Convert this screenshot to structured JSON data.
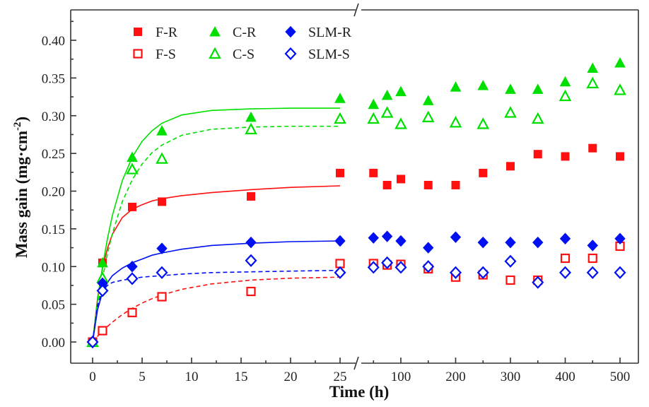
{
  "chart_data": {
    "type": "scatter",
    "title": "",
    "xlabel": "Time (h)",
    "ylabel": "Mass gain (mg·cm",
    "ylabel_sup": "-2",
    "ylabel_close": ")",
    "ylim": [
      0,
      0.44
    ],
    "x_axis": {
      "broken": true,
      "segments": [
        {
          "range": [
            0,
            25
          ],
          "ticks": [
            0,
            5,
            10,
            15,
            20,
            25
          ],
          "tick_labels": [
            "0",
            "5",
            "10",
            "15",
            "20",
            "25"
          ],
          "minor_step": 2.5
        },
        {
          "range": [
            20,
            520
          ],
          "ticks": [
            100,
            200,
            300,
            400,
            500
          ],
          "tick_labels": [
            "100",
            "200",
            "300",
            "400",
            "500"
          ],
          "minor_step": 50
        }
      ]
    },
    "y_ticks": [
      0,
      0.05,
      0.1,
      0.15,
      0.2,
      0.25,
      0.3,
      0.35,
      0.4
    ],
    "y_tick_labels": [
      "0.00",
      "0.05",
      "0.10",
      "0.15",
      "0.20",
      "0.25",
      "0.30",
      "0.35",
      "0.40"
    ],
    "grid": false,
    "legend_placement": "top-left",
    "x": [
      0,
      1,
      4,
      7,
      16,
      25,
      50,
      75,
      100,
      150,
      200,
      250,
      300,
      350,
      400,
      450,
      500
    ],
    "series": [
      {
        "name": "F-R",
        "color": "#ff1010",
        "marker": "square",
        "filled": true,
        "values": [
          0,
          0.105,
          0.179,
          0.186,
          0.193,
          0.224,
          0.224,
          0.208,
          0.216,
          0.208,
          0.208,
          0.224,
          0.233,
          0.249,
          0.246,
          0.257,
          0.246
        ],
        "fit": {
          "dash": false,
          "t": [
            0,
            0.5,
            1,
            1.5,
            2,
            3,
            4,
            5,
            6,
            7,
            9,
            12,
            16,
            20,
            25
          ],
          "y": [
            0,
            0.058,
            0.098,
            0.124,
            0.143,
            0.165,
            0.176,
            0.182,
            0.187,
            0.19,
            0.194,
            0.198,
            0.202,
            0.205,
            0.207
          ]
        }
      },
      {
        "name": "F-S",
        "color": "#ff1010",
        "marker": "square",
        "filled": false,
        "values": [
          0,
          0.015,
          0.039,
          0.06,
          0.067,
          0.104,
          0.104,
          0.102,
          0.103,
          0.097,
          0.086,
          0.089,
          0.082,
          0.082,
          0.111,
          0.111,
          0.127
        ],
        "fit": {
          "dash": true,
          "t": [
            0,
            0.5,
            1,
            1.5,
            2,
            3,
            4,
            5,
            6,
            7,
            9,
            12,
            16,
            20,
            25
          ],
          "y": [
            0,
            0.0075,
            0.0144,
            0.0206,
            0.0263,
            0.0363,
            0.0446,
            0.0516,
            0.0574,
            0.0623,
            0.0698,
            0.077,
            0.0821,
            0.0846,
            0.086
          ]
        }
      },
      {
        "name": "C-R",
        "color": "#00e000",
        "marker": "triangle",
        "filled": true,
        "values": [
          0,
          0.105,
          0.245,
          0.28,
          0.298,
          0.323,
          0.315,
          0.327,
          0.332,
          0.32,
          0.338,
          0.34,
          0.335,
          0.335,
          0.345,
          0.363,
          0.37
        ],
        "fit": {
          "dash": false,
          "t": [
            0,
            0.5,
            1,
            1.5,
            2,
            3,
            4,
            5,
            6,
            7,
            9,
            12,
            16,
            20,
            25
          ],
          "y": [
            0,
            0.055,
            0.1,
            0.137,
            0.168,
            0.214,
            0.245,
            0.266,
            0.28,
            0.29,
            0.301,
            0.307,
            0.309,
            0.31,
            0.31
          ]
        }
      },
      {
        "name": "C-S",
        "color": "#00e000",
        "marker": "triangle",
        "filled": false,
        "values": [
          0,
          0.085,
          0.229,
          0.243,
          0.282,
          0.296,
          0.296,
          0.304,
          0.289,
          0.298,
          0.291,
          0.289,
          0.304,
          0.296,
          0.326,
          0.343,
          0.334
        ],
        "fit": {
          "dash": true,
          "t": [
            0,
            0.5,
            1,
            1.5,
            2,
            3,
            4,
            5,
            6,
            7,
            9,
            12,
            16,
            20,
            25
          ],
          "y": [
            0,
            0.046,
            0.084,
            0.117,
            0.144,
            0.186,
            0.215,
            0.236,
            0.251,
            0.261,
            0.274,
            0.282,
            0.285,
            0.286,
            0.286
          ]
        }
      },
      {
        "name": "SLM-R",
        "color": "#0010f0",
        "marker": "diamond",
        "filled": true,
        "values": [
          0,
          0.078,
          0.1,
          0.124,
          0.132,
          0.134,
          0.138,
          0.14,
          0.134,
          0.125,
          0.139,
          0.132,
          0.132,
          0.132,
          0.137,
          0.128,
          0.137
        ],
        "fit": {
          "dash": false,
          "t": [
            0,
            0.5,
            1,
            1.5,
            2,
            3,
            4,
            5,
            6,
            7,
            9,
            12,
            16,
            20,
            25
          ],
          "y": [
            0,
            0.043,
            0.066,
            0.079,
            0.088,
            0.098,
            0.105,
            0.11,
            0.115,
            0.118,
            0.123,
            0.128,
            0.131,
            0.133,
            0.134
          ]
        }
      },
      {
        "name": "SLM-S",
        "color": "#0010f0",
        "marker": "diamond",
        "filled": false,
        "values": [
          0,
          0.068,
          0.084,
          0.092,
          0.108,
          0.092,
          0.099,
          0.105,
          0.099,
          0.1,
          0.092,
          0.092,
          0.107,
          0.079,
          0.092,
          0.092,
          0.092
        ],
        "fit": {
          "dash": true,
          "t": [
            0,
            0.5,
            1,
            1.5,
            2,
            3,
            4,
            5,
            6,
            7,
            9,
            12,
            16,
            20,
            25
          ],
          "y": [
            0,
            0.049,
            0.068,
            0.075,
            0.079,
            0.082,
            0.084,
            0.086,
            0.087,
            0.088,
            0.09,
            0.092,
            0.093,
            0.094,
            0.095
          ]
        }
      }
    ],
    "legend_order": [
      "F-R",
      "C-R",
      "SLM-R",
      "F-S",
      "C-S",
      "SLM-S"
    ]
  }
}
